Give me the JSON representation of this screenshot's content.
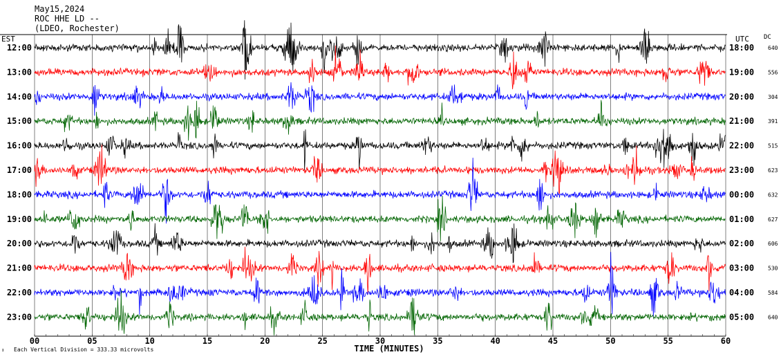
{
  "header": {
    "date": "May15,2024",
    "station": "ROC HHE LD --",
    "location": "(LDEO, Rochester)"
  },
  "corners": {
    "left": "EST",
    "right": "UTC",
    "dc": "DC"
  },
  "footer": {
    "note": "Each Vertical Division = 333.33 microvolts"
  },
  "colors": {
    "black": "#000000",
    "red": "#ff0000",
    "blue": "#0000ff",
    "green": "#006400"
  },
  "chart_data": {
    "type": "line",
    "title": "",
    "xlabel": "TIME (MINUTES)",
    "ylabel": "",
    "x_ticks": [
      "00",
      "05",
      "10",
      "15",
      "20",
      "25",
      "30",
      "35",
      "40",
      "45",
      "50",
      "55",
      "60"
    ],
    "xlim": [
      0,
      60
    ],
    "grid": true,
    "rows": [
      {
        "est": "12:00",
        "utc": "18:00",
        "dc": "640",
        "color": "black"
      },
      {
        "est": "13:00",
        "utc": "19:00",
        "dc": "556",
        "color": "red"
      },
      {
        "est": "14:00",
        "utc": "20:00",
        "dc": "304",
        "color": "blue"
      },
      {
        "est": "15:00",
        "utc": "21:00",
        "dc": "391",
        "color": "green"
      },
      {
        "est": "16:00",
        "utc": "22:00",
        "dc": "515",
        "color": "black"
      },
      {
        "est": "17:00",
        "utc": "23:00",
        "dc": "623",
        "color": "red"
      },
      {
        "est": "18:00",
        "utc": "00:00",
        "dc": "632",
        "color": "blue"
      },
      {
        "est": "19:00",
        "utc": "01:00",
        "dc": "627",
        "color": "green"
      },
      {
        "est": "20:00",
        "utc": "02:00",
        "dc": "606",
        "color": "black"
      },
      {
        "est": "21:00",
        "utc": "03:00",
        "dc": "530",
        "color": "red"
      },
      {
        "est": "22:00",
        "utc": "04:00",
        "dc": "584",
        "color": "blue"
      },
      {
        "est": "23:00",
        "utc": "05:00",
        "dc": "640",
        "color": "green"
      }
    ]
  }
}
